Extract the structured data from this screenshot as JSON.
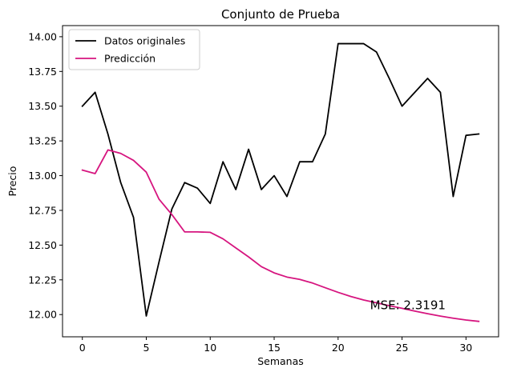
{
  "chart_data": {
    "type": "line",
    "title": "Conjunto de Prueba",
    "xlabel": "Semanas",
    "ylabel": "Precio",
    "xlim": [
      -1.55,
      32.55
    ],
    "ylim": [
      11.84,
      14.08
    ],
    "xticks": [
      0,
      5,
      10,
      15,
      20,
      25,
      30
    ],
    "yticks": [
      12.0,
      12.25,
      12.5,
      12.75,
      13.0,
      13.25,
      13.5,
      13.75,
      14.0
    ],
    "ytick_labels": [
      "12.00",
      "12.25",
      "12.50",
      "12.75",
      "13.00",
      "13.25",
      "13.50",
      "13.75",
      "14.00"
    ],
    "grid": false,
    "legend_position": "upper-left",
    "x": [
      0,
      1,
      2,
      3,
      4,
      5,
      6,
      7,
      8,
      9,
      10,
      11,
      12,
      13,
      14,
      15,
      16,
      17,
      18,
      19,
      20,
      21,
      22,
      23,
      24,
      25,
      26,
      27,
      28,
      29,
      30,
      31
    ],
    "series": [
      {
        "name": "Datos originales",
        "color": "#000000",
        "values": [
          13.5,
          13.6,
          13.3,
          12.95,
          12.7,
          11.99,
          12.38,
          12.76,
          12.95,
          12.91,
          12.8,
          13.1,
          12.9,
          13.19,
          12.9,
          13.0,
          12.85,
          13.1,
          13.1,
          13.3,
          13.95,
          13.95,
          13.95,
          13.89,
          13.7,
          13.5,
          13.6,
          13.7,
          13.6,
          12.85,
          13.29,
          13.3
        ]
      },
      {
        "name": "Predicción",
        "color": "#d6157f",
        "values": [
          13.04,
          13.015,
          13.185,
          13.16,
          13.11,
          13.025,
          12.83,
          12.72,
          12.595,
          12.595,
          12.592,
          12.545,
          12.48,
          12.415,
          12.345,
          12.3,
          12.27,
          12.253,
          12.227,
          12.193,
          12.16,
          12.13,
          12.105,
          12.085,
          12.064,
          12.045,
          12.025,
          12.006,
          11.989,
          11.974,
          11.961,
          11.951
        ]
      }
    ],
    "annotations": [
      {
        "text": "MSE: 2.3191",
        "x": 22.5,
        "y": 12.04
      }
    ]
  }
}
